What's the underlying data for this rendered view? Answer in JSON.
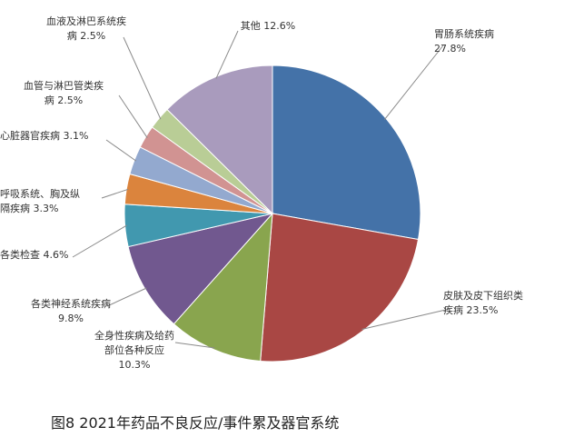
{
  "chart_data": {
    "type": "pie",
    "slices": [
      {
        "label": [
          "胃肠系统疾病",
          "27.8%"
        ],
        "value": 27.8,
        "color": "#4472A8"
      },
      {
        "label": [
          "皮肤及皮下组织类",
          "疾病 23.5%"
        ],
        "value": 23.5,
        "color": "#A94744"
      },
      {
        "label": [
          "全身性疾病及给药",
          "部位各种反应",
          "10.3%"
        ],
        "value": 10.3,
        "color": "#89A54E"
      },
      {
        "label": [
          "各类神经系统疾病",
          "9.8%"
        ],
        "value": 9.8,
        "color": "#71588F"
      },
      {
        "label": [
          "各类检查 4.6%"
        ],
        "value": 4.6,
        "color": "#4198AF"
      },
      {
        "label": [
          "呼吸系统、胸及纵",
          "隔疾病 3.3%"
        ],
        "value": 3.3,
        "color": "#DB843D"
      },
      {
        "label": [
          "心脏器官疾病 3.1%"
        ],
        "value": 3.1,
        "color": "#93A9CF"
      },
      {
        "label": [
          "血管与淋巴管类疾",
          "病 2.5%"
        ],
        "value": 2.5,
        "color": "#D19392"
      },
      {
        "label": [
          "血液及淋巴系统疾",
          "病 2.5%"
        ],
        "value": 2.5,
        "color": "#B9CD96"
      },
      {
        "label": [
          "其他 12.6%"
        ],
        "value": 12.6,
        "color": "#A99BBD"
      }
    ]
  },
  "caption": "图8  2021年药品不良反应/事件累及器官系统"
}
